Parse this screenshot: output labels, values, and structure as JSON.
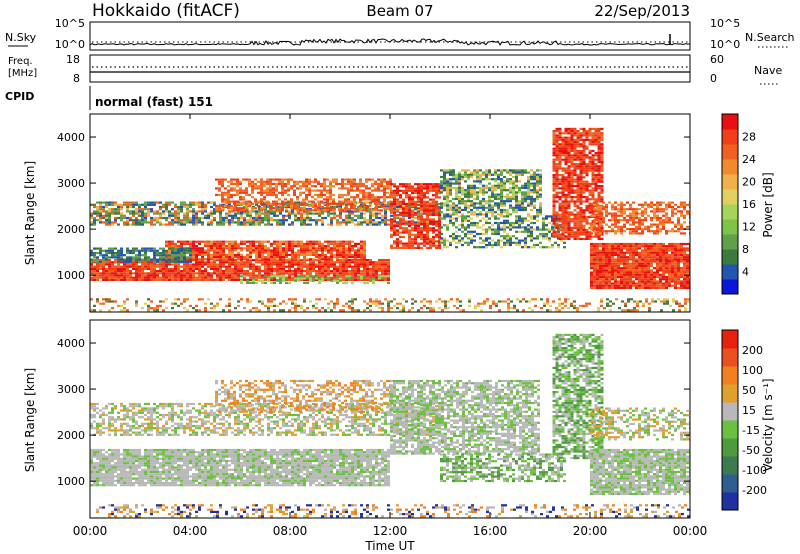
{
  "header": {
    "station": "Hokkaido (fitACF)",
    "beam": "Beam 07",
    "date": "22/Sep/2013"
  },
  "status_panels": {
    "nsky": {
      "label": "N.Sky",
      "left_ticks": [
        "10^5",
        "10^0"
      ],
      "right_label": "N.Search",
      "right_ticks": [
        "10^5",
        "10^0"
      ]
    },
    "freq": {
      "label_line1": "Freq.",
      "label_line2": "[MHz]",
      "left_ticks": [
        "18",
        "8"
      ],
      "right_label": "Nave",
      "right_ticks": [
        "60",
        "0"
      ]
    },
    "cpid": {
      "label": "CPID",
      "value": "normal (fast) 151"
    }
  },
  "chart_data": [
    {
      "type": "heatmap",
      "name": "power",
      "ylabel": "Slant Range [km]",
      "xlabel": "",
      "ylim": [
        200,
        4500
      ],
      "yticks": [
        "1000",
        "2000",
        "3000",
        "4000"
      ],
      "colorbar_label": "Power [dB]",
      "colorbar_ticks": [
        "4",
        "8",
        "12",
        "16",
        "20",
        "24",
        "28"
      ],
      "colorbar_colors": [
        "#0b17d8",
        "#2255b0",
        "#3f7a3d",
        "#5fa04a",
        "#7fc24a",
        "#a6d45a",
        "#e0d060",
        "#f0b04a",
        "#f08a30",
        "#f06020",
        "#f04018",
        "#e81010"
      ]
    },
    {
      "type": "heatmap",
      "name": "velocity",
      "ylabel": "Slant Range [km]",
      "xlabel": "Time UT",
      "ylim": [
        200,
        4500
      ],
      "yticks": [
        "1000",
        "2000",
        "3000",
        "4000"
      ],
      "xticks": [
        "00:00",
        "04:00",
        "08:00",
        "12:00",
        "16:00",
        "20:00",
        "00:00"
      ],
      "colorbar_label": "Velocity [m s⁻¹]",
      "colorbar_ticks": [
        "200",
        "100",
        "50",
        "15",
        "-15",
        "-50",
        "-100",
        "-200"
      ],
      "colorbar_colors": [
        "#2030a0",
        "#2d5e8f",
        "#3e7a50",
        "#4e9a3e",
        "#6cc040",
        "#b8b8b8",
        "#e0a030",
        "#f08020",
        "#e85020",
        "#e82010"
      ]
    }
  ]
}
